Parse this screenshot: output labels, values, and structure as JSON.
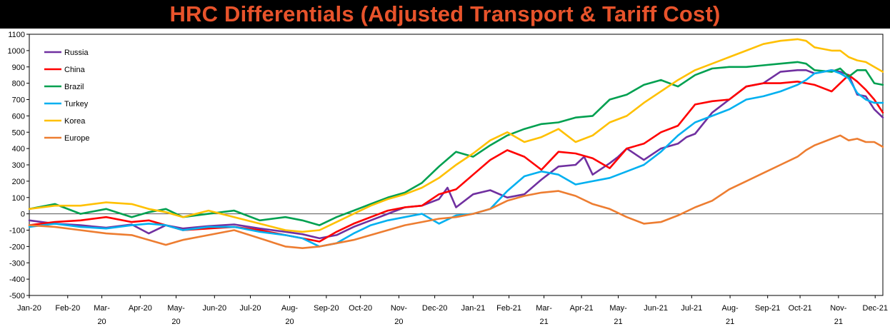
{
  "chart_data": {
    "type": "line",
    "title": "HRC Differentials (Adjusted Transport & Tariff Cost)",
    "xlabel": "",
    "ylabel": "",
    "ylim": [
      -500,
      1100
    ],
    "yticks": [
      -500,
      -400,
      -300,
      -200,
      -100,
      0,
      100,
      200,
      300,
      400,
      500,
      600,
      700,
      800,
      900,
      1000,
      1100
    ],
    "xrange": [
      0,
      100
    ],
    "xticks": [
      {
        "pos": 0,
        "line1": "Jan-20",
        "line2": ""
      },
      {
        "pos": 4.5,
        "line1": "Feb-20",
        "line2": ""
      },
      {
        "pos": 8.5,
        "line1": "Mar-",
        "line2": "20"
      },
      {
        "pos": 13.0,
        "line1": "Apr-20",
        "line2": ""
      },
      {
        "pos": 17.2,
        "line1": "May-",
        "line2": "20"
      },
      {
        "pos": 21.7,
        "line1": "Jun-20",
        "line2": ""
      },
      {
        "pos": 25.9,
        "line1": "Jul-20",
        "line2": ""
      },
      {
        "pos": 30.5,
        "line1": "Aug-",
        "line2": "20"
      },
      {
        "pos": 34.8,
        "line1": "Sep-20",
        "line2": ""
      },
      {
        "pos": 38.8,
        "line1": "Oct-20",
        "line2": ""
      },
      {
        "pos": 43.3,
        "line1": "Nov-",
        "line2": "20"
      },
      {
        "pos": 47.5,
        "line1": "Dec-20",
        "line2": ""
      },
      {
        "pos": 52.0,
        "line1": "Jan-21",
        "line2": ""
      },
      {
        "pos": 56.2,
        "line1": "Feb-21",
        "line2": ""
      },
      {
        "pos": 60.3,
        "line1": "Mar-",
        "line2": "21"
      },
      {
        "pos": 64.7,
        "line1": "Apr-21",
        "line2": ""
      },
      {
        "pos": 69.0,
        "line1": "May-",
        "line2": "21"
      },
      {
        "pos": 73.4,
        "line1": "Jun-21",
        "line2": ""
      },
      {
        "pos": 77.6,
        "line1": "Jul-21",
        "line2": ""
      },
      {
        "pos": 82.1,
        "line1": "Aug-",
        "line2": "21"
      },
      {
        "pos": 86.5,
        "line1": "Sep-21",
        "line2": ""
      },
      {
        "pos": 90.3,
        "line1": "Oct-21",
        "line2": ""
      },
      {
        "pos": 94.8,
        "line1": "Nov-",
        "line2": "21"
      },
      {
        "pos": 99.1,
        "line1": "Dec-21",
        "line2": ""
      }
    ],
    "legend_position": "top-left",
    "series": [
      {
        "name": "Russia",
        "color": "#7030a0",
        "x": [
          0,
          3,
          6,
          9,
          12,
          14,
          16,
          18,
          21,
          24,
          27,
          30,
          32,
          34,
          36,
          38,
          40,
          42,
          44,
          46,
          48,
          49,
          50,
          52,
          54,
          56,
          58,
          60,
          62,
          64,
          65,
          66,
          68,
          69,
          70,
          72,
          74,
          76,
          77,
          78,
          80,
          82,
          84,
          86,
          88,
          90,
          91,
          92,
          94,
          95,
          96,
          97,
          98,
          99,
          100
        ],
        "y": [
          -40,
          -60,
          -70,
          -85,
          -65,
          -120,
          -70,
          -90,
          -75,
          -65,
          -90,
          -110,
          -125,
          -150,
          -130,
          -80,
          -40,
          0,
          40,
          50,
          90,
          160,
          40,
          120,
          145,
          100,
          120,
          210,
          290,
          300,
          350,
          240,
          310,
          350,
          400,
          330,
          400,
          430,
          470,
          490,
          620,
          700,
          780,
          800,
          870,
          880,
          880,
          860,
          880,
          870,
          850,
          730,
          720,
          640,
          590
        ]
      },
      {
        "name": "China",
        "color": "#ff0000",
        "x": [
          0,
          3,
          6,
          9,
          12,
          14,
          16,
          18,
          21,
          24,
          27,
          30,
          32,
          34,
          36,
          38,
          40,
          42,
          44,
          46,
          48,
          50,
          52,
          54,
          56,
          58,
          60,
          62,
          64,
          66,
          68,
          70,
          72,
          74,
          76,
          78,
          80,
          82,
          84,
          86,
          88,
          90,
          91,
          92,
          94,
          95,
          96,
          97,
          98,
          99,
          100
        ],
        "y": [
          -70,
          -50,
          -40,
          -20,
          -50,
          -40,
          -70,
          -100,
          -90,
          -80,
          -100,
          -130,
          -150,
          -170,
          -110,
          -60,
          -20,
          20,
          40,
          50,
          120,
          150,
          240,
          330,
          390,
          350,
          270,
          380,
          370,
          340,
          280,
          400,
          430,
          500,
          540,
          670,
          690,
          700,
          780,
          800,
          800,
          810,
          800,
          790,
          750,
          800,
          850,
          810,
          760,
          700,
          620
        ]
      },
      {
        "name": "Brazil",
        "color": "#00a050",
        "x": [
          0,
          3,
          6,
          9,
          12,
          14,
          16,
          18,
          21,
          24,
          27,
          30,
          32,
          34,
          36,
          38,
          40,
          42,
          44,
          46,
          48,
          50,
          52,
          54,
          56,
          58,
          60,
          62,
          64,
          66,
          68,
          70,
          72,
          74,
          76,
          78,
          80,
          82,
          84,
          86,
          88,
          90,
          91,
          92,
          94,
          95,
          96,
          97,
          98,
          99,
          100
        ],
        "y": [
          30,
          60,
          0,
          30,
          -20,
          10,
          30,
          -20,
          0,
          20,
          -40,
          -20,
          -40,
          -70,
          -20,
          20,
          60,
          100,
          130,
          190,
          290,
          380,
          350,
          420,
          480,
          520,
          550,
          560,
          590,
          600,
          700,
          730,
          790,
          820,
          780,
          850,
          890,
          900,
          900,
          910,
          920,
          930,
          920,
          880,
          870,
          890,
          840,
          880,
          880,
          800,
          790
        ]
      },
      {
        "name": "Turkey",
        "color": "#00b0f0",
        "x": [
          0,
          3,
          6,
          9,
          12,
          14,
          16,
          18,
          21,
          24,
          27,
          30,
          32,
          34,
          36,
          38,
          40,
          42,
          44,
          46,
          48,
          50,
          52,
          54,
          56,
          58,
          60,
          62,
          64,
          66,
          68,
          70,
          72,
          74,
          76,
          78,
          80,
          82,
          84,
          86,
          88,
          90,
          91,
          92,
          94,
          95,
          96,
          97,
          98,
          99,
          100
        ],
        "y": [
          -80,
          -60,
          -80,
          -90,
          -70,
          -60,
          -70,
          -100,
          -80,
          -80,
          -110,
          -130,
          -150,
          -200,
          -180,
          -120,
          -70,
          -40,
          -20,
          0,
          -60,
          -10,
          0,
          30,
          140,
          230,
          260,
          240,
          180,
          200,
          220,
          260,
          300,
          380,
          480,
          560,
          600,
          640,
          700,
          720,
          750,
          790,
          820,
          860,
          880,
          860,
          830,
          740,
          700,
          680,
          680
        ]
      },
      {
        "name": "Korea",
        "color": "#ffc000",
        "x": [
          0,
          3,
          6,
          9,
          12,
          14,
          16,
          18,
          21,
          24,
          27,
          30,
          32,
          34,
          36,
          38,
          40,
          42,
          44,
          46,
          48,
          50,
          52,
          54,
          56,
          58,
          60,
          62,
          64,
          66,
          68,
          70,
          72,
          74,
          76,
          78,
          80,
          82,
          84,
          86,
          88,
          90,
          91,
          92,
          94,
          95,
          96,
          97,
          98,
          99,
          100
        ],
        "y": [
          30,
          50,
          50,
          70,
          60,
          30,
          10,
          -20,
          20,
          -20,
          -60,
          -100,
          -110,
          -100,
          -50,
          0,
          50,
          90,
          120,
          160,
          220,
          300,
          370,
          450,
          500,
          440,
          470,
          520,
          440,
          480,
          560,
          600,
          680,
          750,
          820,
          880,
          920,
          960,
          1000,
          1040,
          1060,
          1070,
          1060,
          1020,
          1000,
          1000,
          960,
          940,
          930,
          900,
          870
        ]
      },
      {
        "name": "Europe",
        "color": "#ed7d31",
        "x": [
          0,
          3,
          6,
          9,
          12,
          14,
          16,
          18,
          21,
          24,
          27,
          30,
          32,
          34,
          36,
          38,
          40,
          42,
          44,
          46,
          48,
          50,
          52,
          54,
          56,
          58,
          60,
          62,
          64,
          66,
          68,
          70,
          72,
          74,
          76,
          78,
          80,
          82,
          84,
          86,
          88,
          90,
          91,
          92,
          94,
          95,
          96,
          97,
          98,
          99,
          100
        ],
        "y": [
          -70,
          -80,
          -100,
          -120,
          -130,
          -160,
          -190,
          -160,
          -130,
          -100,
          -150,
          -200,
          -210,
          -200,
          -180,
          -160,
          -130,
          -100,
          -70,
          -50,
          -30,
          -20,
          0,
          30,
          80,
          110,
          130,
          140,
          110,
          60,
          30,
          -20,
          -60,
          -50,
          -10,
          40,
          80,
          150,
          200,
          250,
          300,
          350,
          390,
          420,
          460,
          480,
          450,
          460,
          440,
          440,
          410
        ]
      }
    ]
  }
}
